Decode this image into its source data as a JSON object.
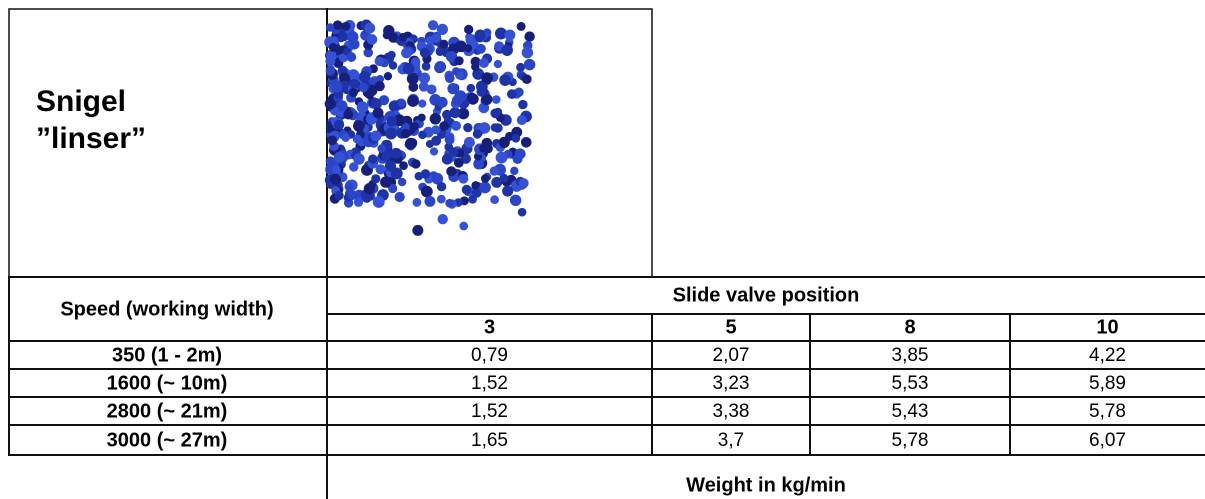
{
  "header": {
    "title": [
      "Snigel",
      "”linser”"
    ]
  },
  "table": {
    "row_header": "Speed (working width)",
    "column_group": "Slide valve position",
    "columns": [
      "3",
      "5",
      "8",
      "10"
    ],
    "rows": [
      {
        "label": "350 (1 - 2m)",
        "values": [
          "0,79",
          "2,07",
          "3,85",
          "4,22"
        ]
      },
      {
        "label": "1600 (~ 10m)",
        "values": [
          "1,52",
          "3,23",
          "5,53",
          "5,89"
        ]
      },
      {
        "label": "2800 (~ 21m)",
        "values": [
          "1,52",
          "3,38",
          "5,43",
          "5,78"
        ]
      },
      {
        "label": "3000 (~ 27m)",
        "values": [
          "1,65",
          "3,7",
          "5,78",
          "6,07"
        ]
      }
    ],
    "footer": "Weight in kg/min"
  }
}
